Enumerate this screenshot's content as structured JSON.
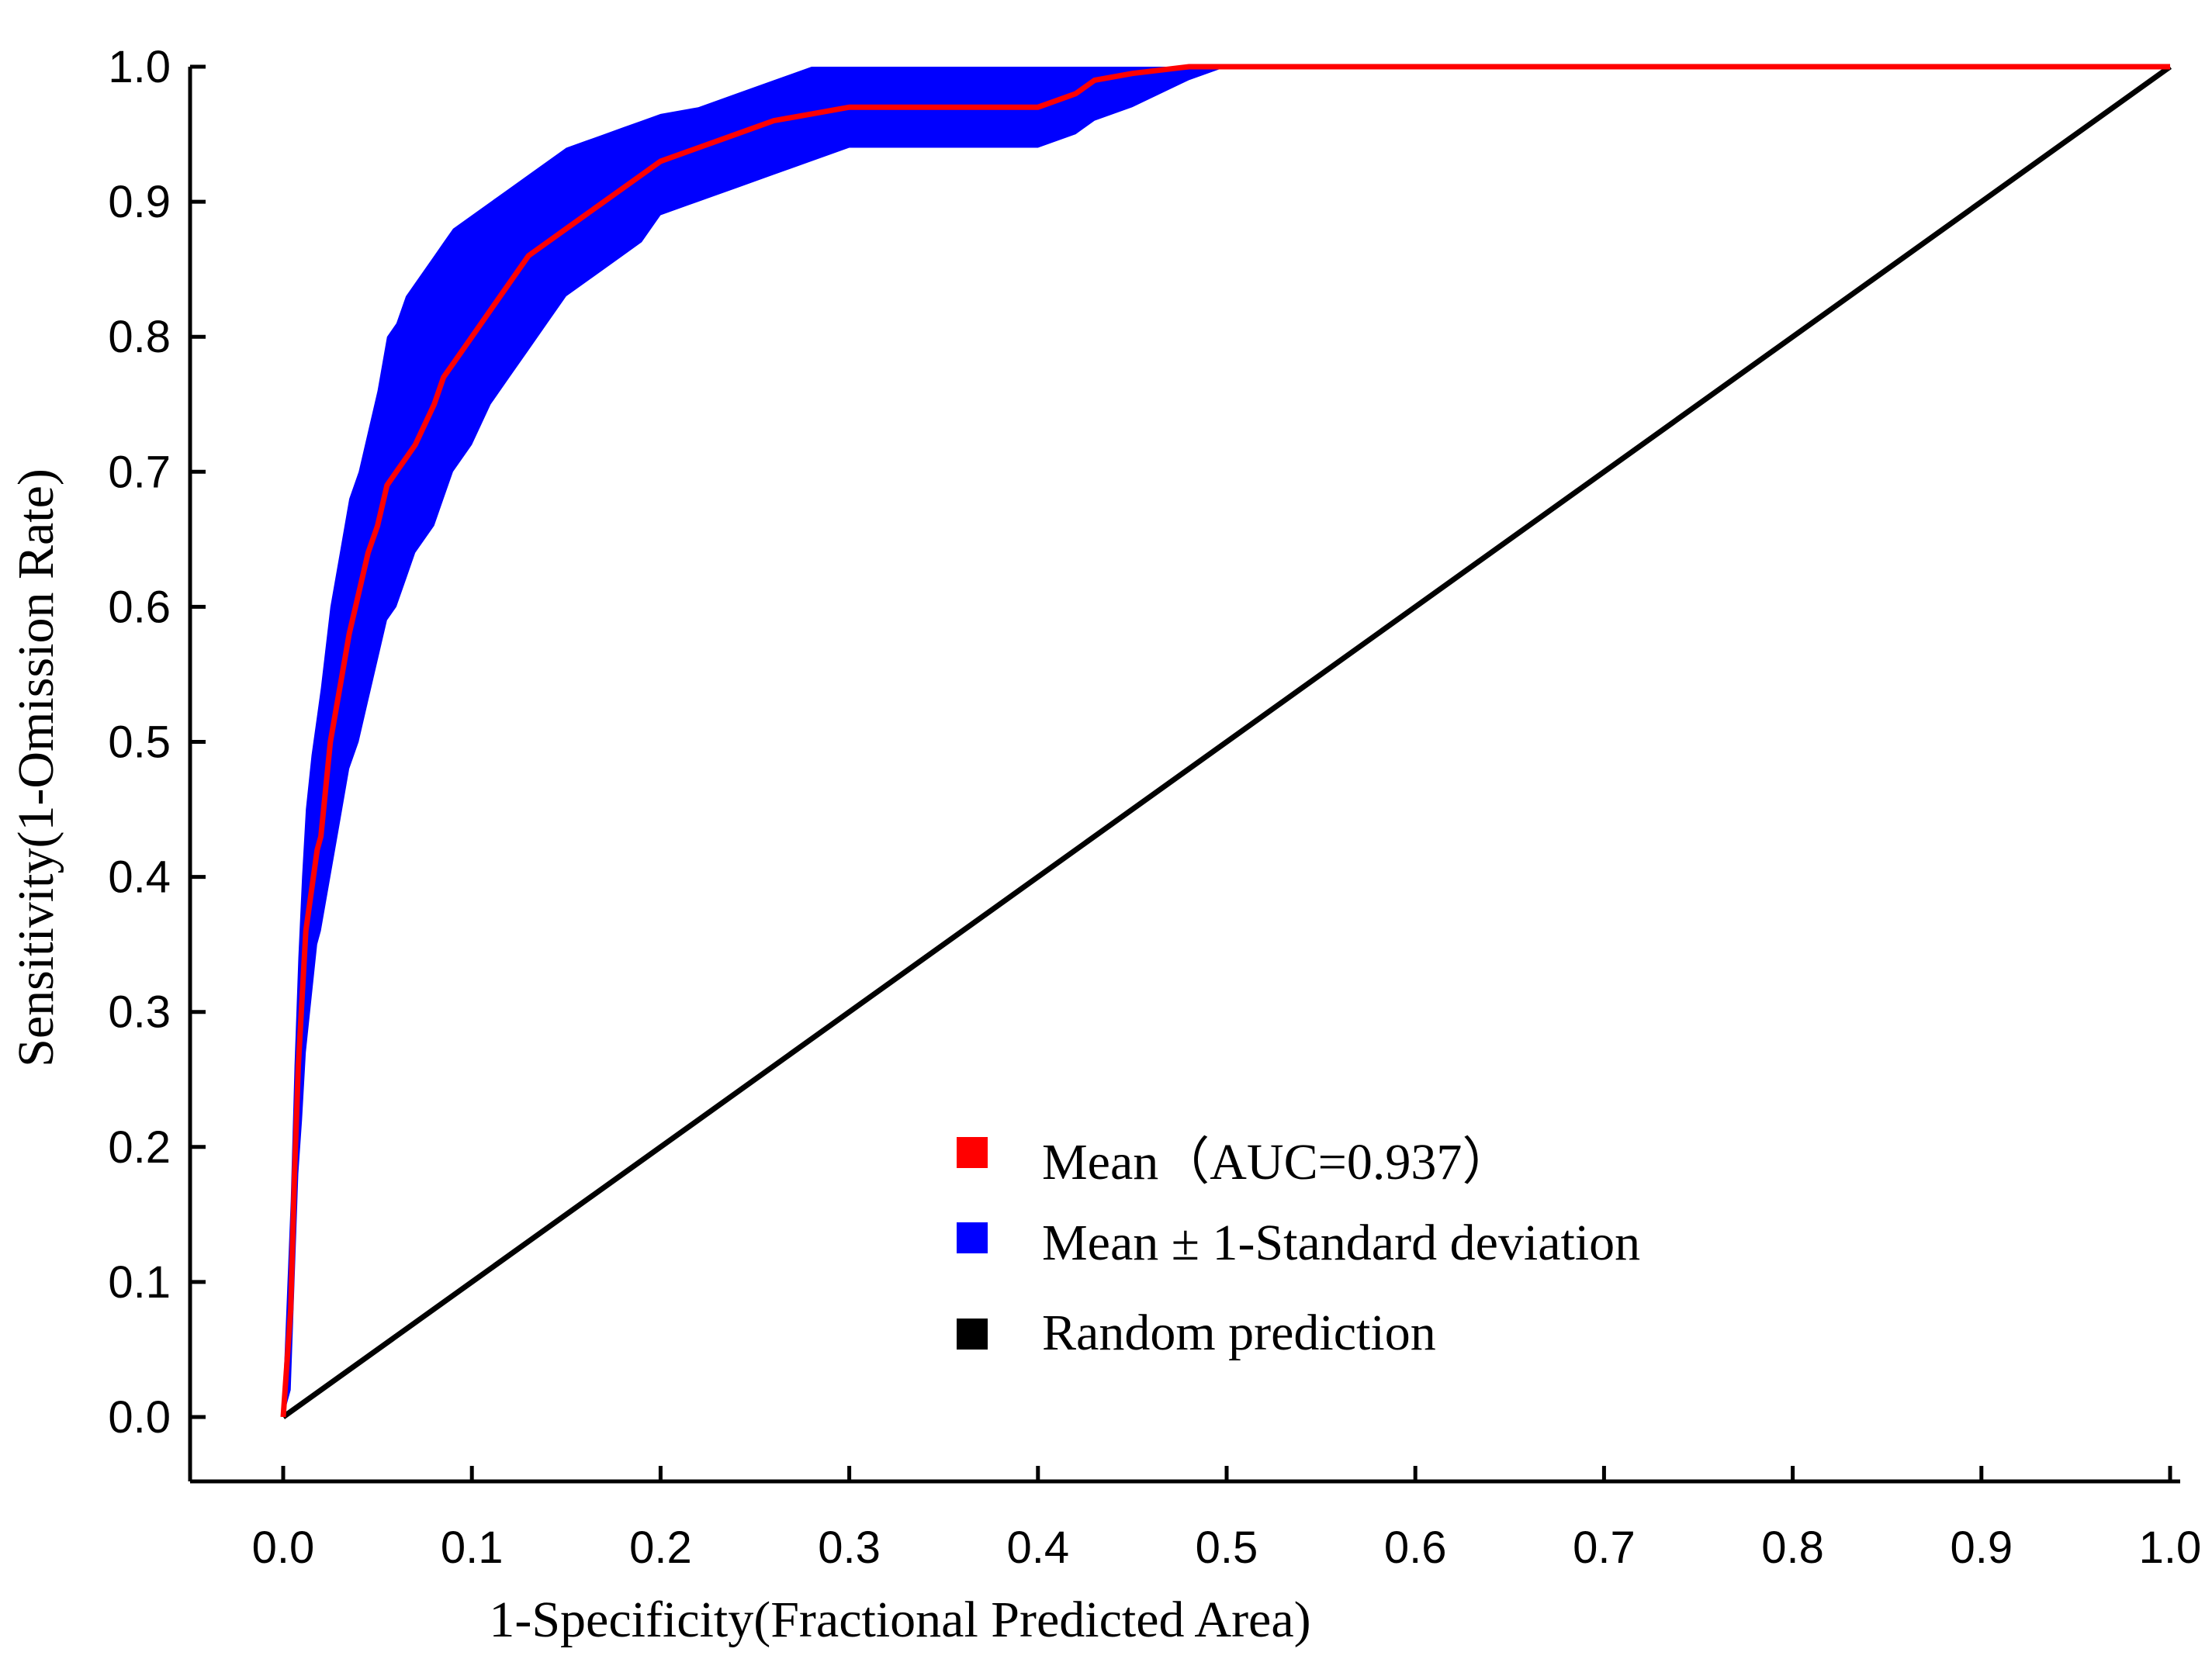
{
  "chart_data": {
    "type": "line",
    "title": "",
    "xlabel": "1-Specificity(Fractional Predicted Area)",
    "ylabel": "Sensitivity(1-Omission Rate)",
    "xlim": [
      0.0,
      1.0
    ],
    "ylim": [
      0.0,
      1.0
    ],
    "grid": false,
    "x_ticks": [
      "0.0",
      "0.1",
      "0.2",
      "0.3",
      "0.4",
      "0.5",
      "0.6",
      "0.7",
      "0.8",
      "0.9",
      "1.0"
    ],
    "y_ticks": [
      "0.0",
      "0.1",
      "0.2",
      "0.3",
      "0.4",
      "0.5",
      "0.6",
      "0.7",
      "0.8",
      "0.9",
      "1.0"
    ],
    "legend_position": "lower-right",
    "series": [
      {
        "name": "Mean（AUC=0.937）",
        "color": "#ff0000",
        "x": [
          0.0,
          0.004,
          0.006,
          0.008,
          0.01,
          0.012,
          0.015,
          0.018,
          0.02,
          0.025,
          0.03,
          0.035,
          0.04,
          0.045,
          0.05,
          0.055,
          0.06,
          0.065,
          0.07,
          0.08,
          0.085,
          0.09,
          0.1,
          0.11,
          0.12,
          0.13,
          0.14,
          0.15,
          0.16,
          0.17,
          0.18,
          0.19,
          0.2,
          0.22,
          0.24,
          0.26,
          0.28,
          0.3,
          0.35,
          0.4,
          0.42,
          0.43,
          0.45,
          0.48,
          0.5,
          1.0
        ],
        "y": [
          0.0,
          0.08,
          0.18,
          0.26,
          0.31,
          0.36,
          0.39,
          0.42,
          0.43,
          0.5,
          0.54,
          0.58,
          0.61,
          0.64,
          0.66,
          0.69,
          0.7,
          0.71,
          0.72,
          0.75,
          0.77,
          0.78,
          0.8,
          0.82,
          0.84,
          0.86,
          0.87,
          0.88,
          0.89,
          0.9,
          0.91,
          0.92,
          0.93,
          0.94,
          0.95,
          0.96,
          0.965,
          0.97,
          0.97,
          0.97,
          0.98,
          0.99,
          0.995,
          1.0,
          1.0,
          1.0
        ]
      },
      {
        "name": "Mean ± 1-Standard deviation",
        "color": "#0000ff",
        "x": [
          0.0,
          0.004,
          0.006,
          0.008,
          0.01,
          0.012,
          0.015,
          0.018,
          0.02,
          0.025,
          0.03,
          0.035,
          0.04,
          0.045,
          0.05,
          0.055,
          0.06,
          0.065,
          0.07,
          0.08,
          0.085,
          0.09,
          0.1,
          0.11,
          0.12,
          0.13,
          0.14,
          0.15,
          0.16,
          0.17,
          0.18,
          0.19,
          0.2,
          0.22,
          0.24,
          0.26,
          0.28,
          0.3,
          0.35,
          0.4,
          0.42,
          0.43,
          0.45,
          0.48,
          0.5,
          1.0
        ],
        "upper": [
          0.02,
          0.16,
          0.26,
          0.34,
          0.4,
          0.45,
          0.49,
          0.52,
          0.54,
          0.6,
          0.64,
          0.68,
          0.7,
          0.73,
          0.76,
          0.8,
          0.81,
          0.83,
          0.84,
          0.86,
          0.87,
          0.88,
          0.89,
          0.9,
          0.91,
          0.92,
          0.93,
          0.94,
          0.945,
          0.95,
          0.955,
          0.96,
          0.965,
          0.97,
          0.98,
          0.99,
          1.0,
          1.0,
          1.0,
          1.0,
          1.0,
          1.0,
          1.0,
          1.0,
          1.0,
          1.0
        ],
        "lower": [
          0.0,
          0.02,
          0.1,
          0.18,
          0.22,
          0.27,
          0.31,
          0.35,
          0.36,
          0.4,
          0.44,
          0.48,
          0.5,
          0.53,
          0.56,
          0.59,
          0.6,
          0.62,
          0.64,
          0.66,
          0.68,
          0.7,
          0.72,
          0.75,
          0.77,
          0.79,
          0.81,
          0.83,
          0.84,
          0.85,
          0.86,
          0.87,
          0.89,
          0.9,
          0.91,
          0.92,
          0.93,
          0.94,
          0.94,
          0.94,
          0.95,
          0.96,
          0.97,
          0.99,
          1.0,
          1.0
        ]
      },
      {
        "name": "Random prediction",
        "color": "#000000",
        "x": [
          0.0,
          1.0
        ],
        "y": [
          0.0,
          1.0
        ]
      }
    ]
  }
}
